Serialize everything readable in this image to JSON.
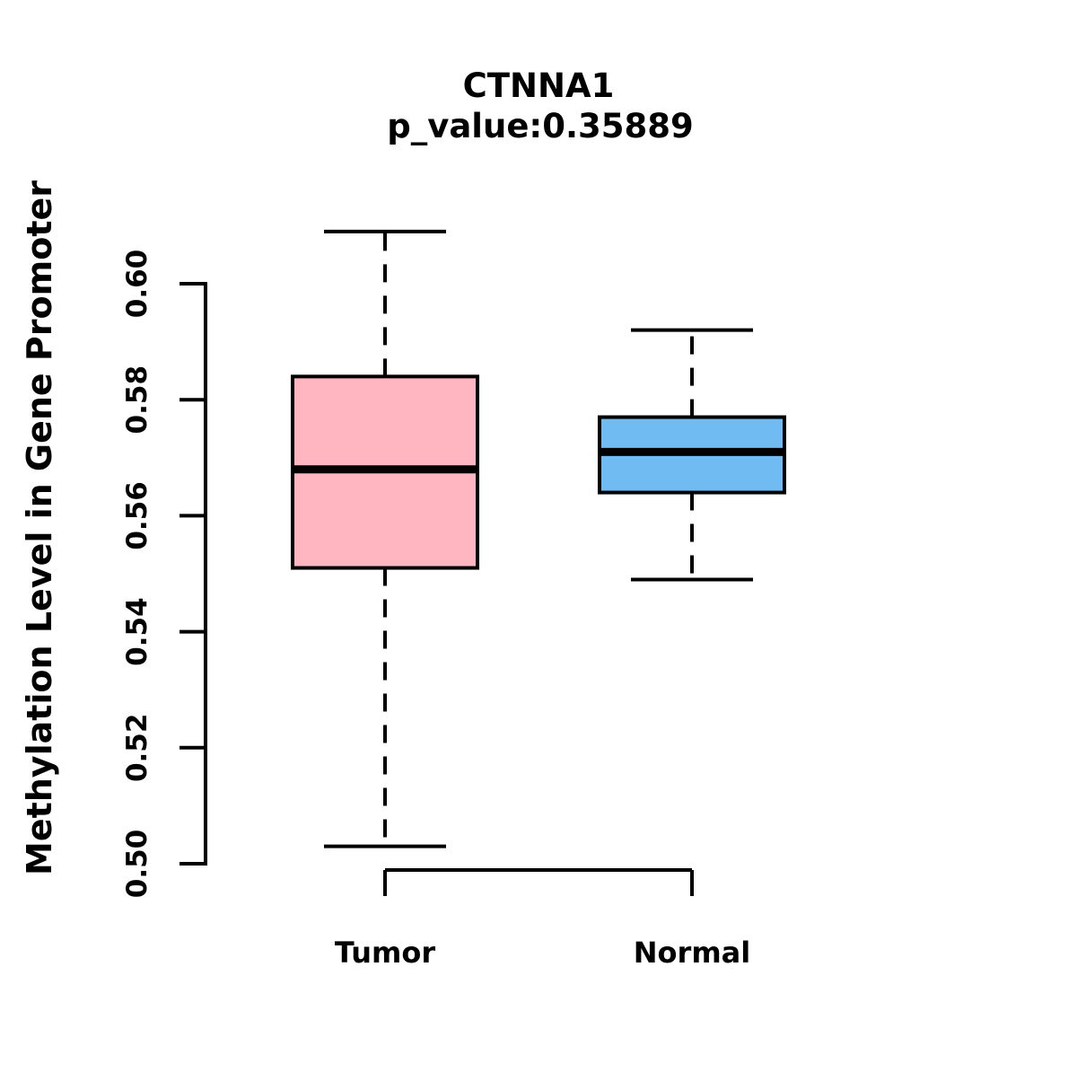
{
  "figure": {
    "title": "CTNNA1",
    "subtitle": "p_value:0.35889",
    "y_axis_label": "Methylation Level in Gene Promoter"
  },
  "colors": {
    "tumor_box_fill": "#FFB6C1",
    "normal_box_fill": "#70BCF2",
    "line": "#000000",
    "background": "#FFFFFF"
  },
  "chart_data": {
    "type": "boxplot",
    "title": "CTNNA1",
    "subtitle": "p_value:0.35889",
    "p_value": 0.35889,
    "gene": "CTNNA1",
    "xlabel": "",
    "ylabel": "Methylation Level in Gene Promoter",
    "categories": [
      "Tumor",
      "Normal"
    ],
    "series": [
      {
        "name": "Tumor",
        "lower_whisker": 0.503,
        "q1": 0.551,
        "median": 0.568,
        "q3": 0.584,
        "upper_whisker": 0.609,
        "fill_color": "#FFB6C1"
      },
      {
        "name": "Normal",
        "lower_whisker": 0.549,
        "q1": 0.564,
        "median": 0.571,
        "q3": 0.577,
        "upper_whisker": 0.592,
        "fill_color": "#70BCF2"
      }
    ],
    "y_ticks": [
      0.5,
      0.52,
      0.54,
      0.56,
      0.58,
      0.6
    ],
    "y_tick_labels": [
      "0.50",
      "0.52",
      "0.54",
      "0.56",
      "0.58",
      "0.60"
    ],
    "ylim": [
      0.5,
      0.612
    ],
    "grid": false,
    "legend": false,
    "whisker_style": "dashed",
    "box_border_color": "#000000",
    "median_color": "#000000",
    "axis_color": "#000000"
  }
}
